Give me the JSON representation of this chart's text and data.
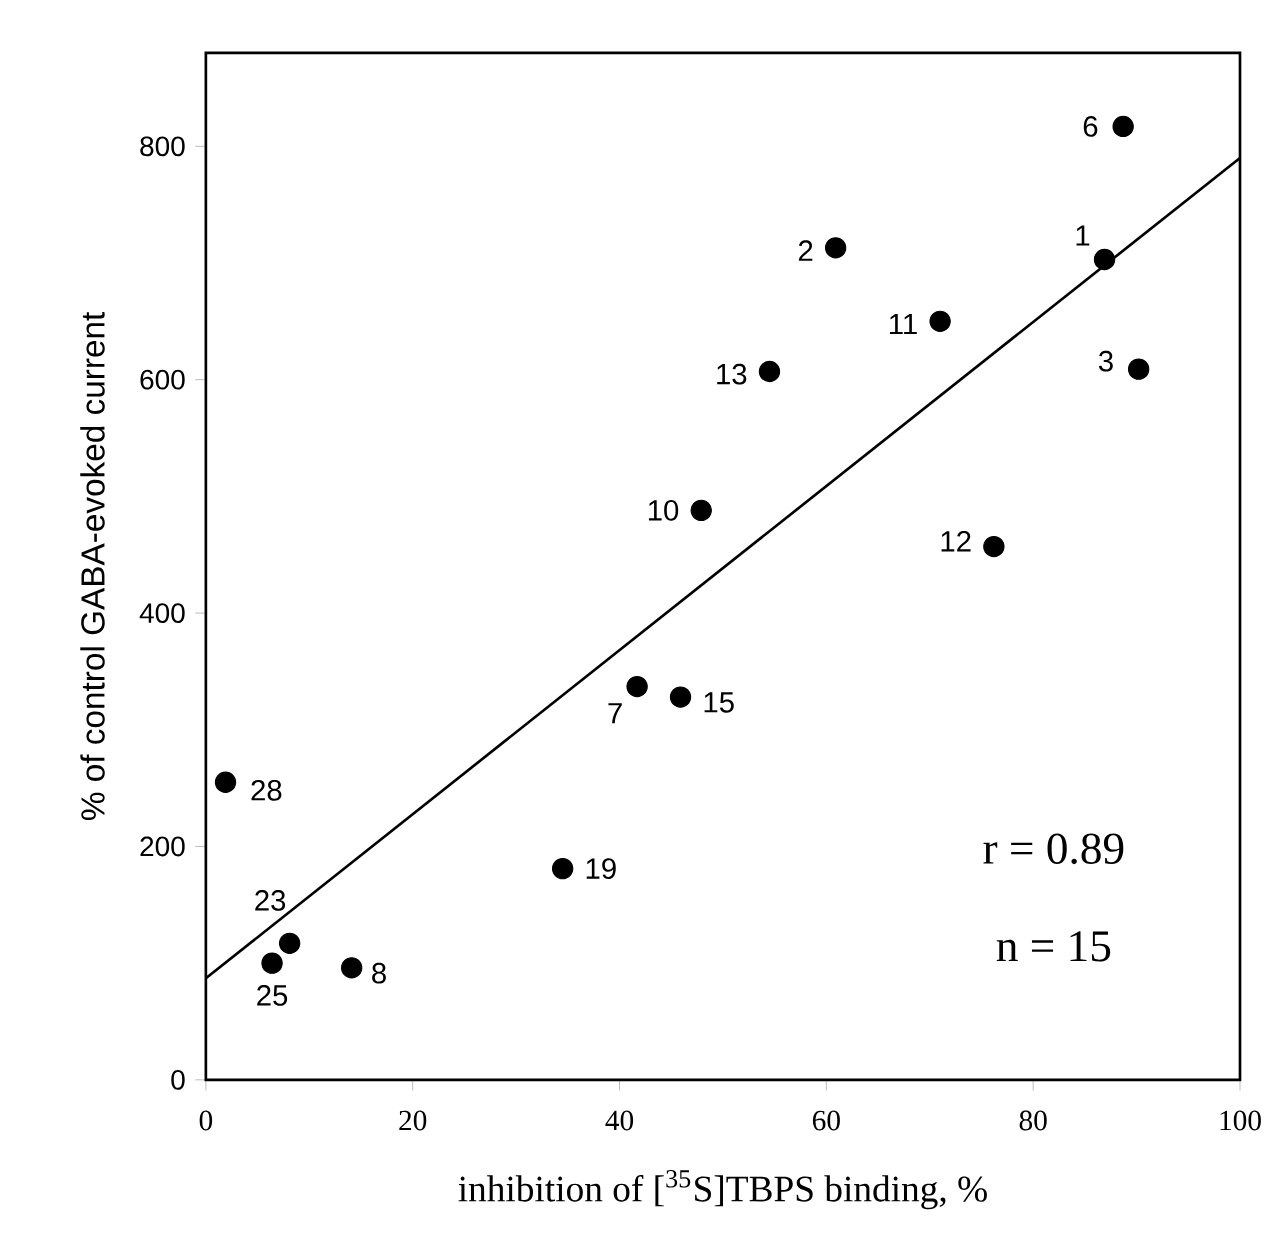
{
  "chart_data": {
    "type": "scatter",
    "xlabel": "inhibition of [$^{35}$S]TBPS binding, %",
    "ylabel": "% of control GABA-evoked current",
    "marker": "circle",
    "xlim": [
      0,
      100
    ],
    "ylim": [
      0,
      880
    ],
    "xticks": [
      0,
      20,
      40,
      60,
      80,
      100
    ],
    "yticks": [
      0,
      200,
      400,
      600,
      800
    ],
    "series": [
      {
        "color": "#000000",
        "x": [
          88.7,
          60.9,
          86.9,
          71.0,
          54.5,
          90.2,
          47.9,
          76.2,
          41.7,
          45.9,
          1.9,
          34.5,
          8.1,
          6.4,
          14.1
        ],
        "values": [
          817,
          713,
          703,
          650,
          607,
          609,
          488,
          457,
          337,
          328,
          255,
          181,
          117,
          100,
          96
        ]
      },
      {
        "type": "line",
        "color": "#000000",
        "marker": "none",
        "x": [
          0,
          100
        ],
        "values": [
          87,
          790
        ]
      }
    ],
    "annotations": [
      {
        "text": "6",
        "x": 88.7,
        "y": 817
      },
      {
        "text": "2",
        "x": 60.9,
        "y": 713
      },
      {
        "text": "1",
        "x": 86.9,
        "y": 703
      },
      {
        "text": "11",
        "x": 71.0,
        "y": 650
      },
      {
        "text": "13",
        "x": 54.5,
        "y": 607
      },
      {
        "text": "3",
        "x": 90.2,
        "y": 609
      },
      {
        "text": "10",
        "x": 47.9,
        "y": 488
      },
      {
        "text": "12",
        "x": 76.2,
        "y": 457
      },
      {
        "text": "7",
        "x": 41.7,
        "y": 337
      },
      {
        "text": "15",
        "x": 45.9,
        "y": 328
      },
      {
        "text": "28",
        "x": 1.9,
        "y": 255
      },
      {
        "text": "19",
        "x": 34.5,
        "y": 181
      },
      {
        "text": "23",
        "x": 8.1,
        "y": 117
      },
      {
        "text": "25",
        "x": 6.4,
        "y": 100
      },
      {
        "text": "8",
        "x": 14.1,
        "y": 96
      },
      "r = 0.89",
      "n = 15"
    ]
  }
}
